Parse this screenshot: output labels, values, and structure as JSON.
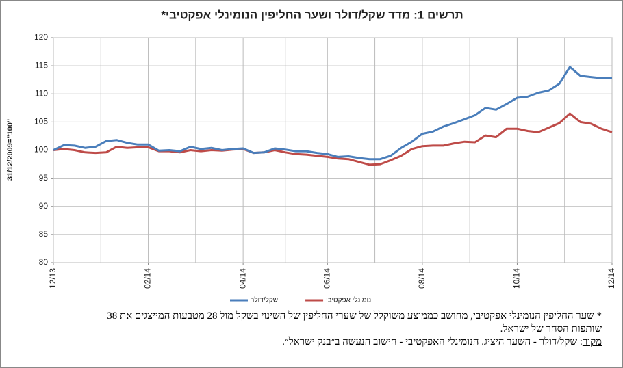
{
  "chart_data": {
    "type": "line",
    "title": "תרשים 1: מדד שקל/דולר ושער החליפין הנומינלי אפקטיבי*",
    "y_label": "31/12/2009=''100''",
    "categories": [
      "12/13",
      null,
      null,
      null,
      null,
      null,
      null,
      null,
      null,
      "02/14",
      null,
      null,
      null,
      null,
      null,
      null,
      null,
      null,
      "04/14",
      null,
      null,
      null,
      null,
      null,
      null,
      null,
      "06/14",
      null,
      null,
      null,
      null,
      null,
      null,
      null,
      null,
      "08/14",
      null,
      null,
      null,
      null,
      null,
      null,
      null,
      null,
      "10/14",
      null,
      null,
      null,
      null,
      null,
      null,
      null,
      null,
      "12/14"
    ],
    "series": [
      {
        "name": "שקל/דולר",
        "color": "#4a7ebb",
        "values": [
          100,
          100.9,
          100.8,
          100.4,
          100.6,
          101.6,
          101.8,
          101.3,
          101.0,
          101.0,
          99.9,
          100.0,
          99.8,
          100.6,
          100.2,
          100.4,
          100.0,
          100.2,
          100.3,
          99.5,
          99.6,
          100.3,
          100.1,
          99.8,
          99.8,
          99.5,
          99.3,
          98.8,
          98.9,
          98.6,
          98.4,
          98.4,
          99.0,
          100.4,
          101.5,
          102.9,
          103.3,
          104.2,
          104.8,
          105.5,
          106.2,
          107.5,
          107.2,
          108.2,
          109.3,
          109.5,
          110.2,
          110.6,
          111.8,
          114.8,
          113.2,
          113.0,
          112.8,
          112.8
        ]
      },
      {
        "name": "נומינלי אפקטיבי",
        "color": "#be4b48",
        "values": [
          100,
          100.2,
          100.0,
          99.6,
          99.5,
          99.6,
          100.6,
          100.4,
          100.5,
          100.5,
          99.8,
          99.8,
          99.6,
          100.0,
          99.8,
          100.0,
          99.9,
          100.1,
          100.2,
          99.5,
          99.6,
          100.0,
          99.6,
          99.3,
          99.2,
          99.0,
          98.8,
          98.5,
          98.4,
          97.9,
          97.4,
          97.5,
          98.2,
          99.0,
          100.2,
          100.7,
          100.8,
          100.8,
          101.2,
          101.5,
          101.4,
          102.6,
          102.3,
          103.8,
          103.8,
          103.4,
          103.2,
          104.0,
          104.8,
          106.5,
          105.0,
          104.7,
          103.8,
          103.2
        ]
      }
    ],
    "ylim": [
      80,
      120
    ],
    "yticks": [
      80,
      85,
      90,
      95,
      100,
      105,
      110,
      115,
      120
    ],
    "grid": true,
    "legend": "bottom",
    "footnote": [
      "* שער החליפין הנומינלי אפקטיבי, מחושב כממוצע משוקלל של שערי החליפין של השינוי בשקל מול 28 מטבעות  המייצגים את 38",
      "שותפות הסחר של ישראל."
    ],
    "source": {
      "label": "מקור",
      "text": ": שקל/דולר - השער היציג. הנומינלי האפקטיבי - חישוב הנעשה ב״בנק ישראל״."
    }
  }
}
